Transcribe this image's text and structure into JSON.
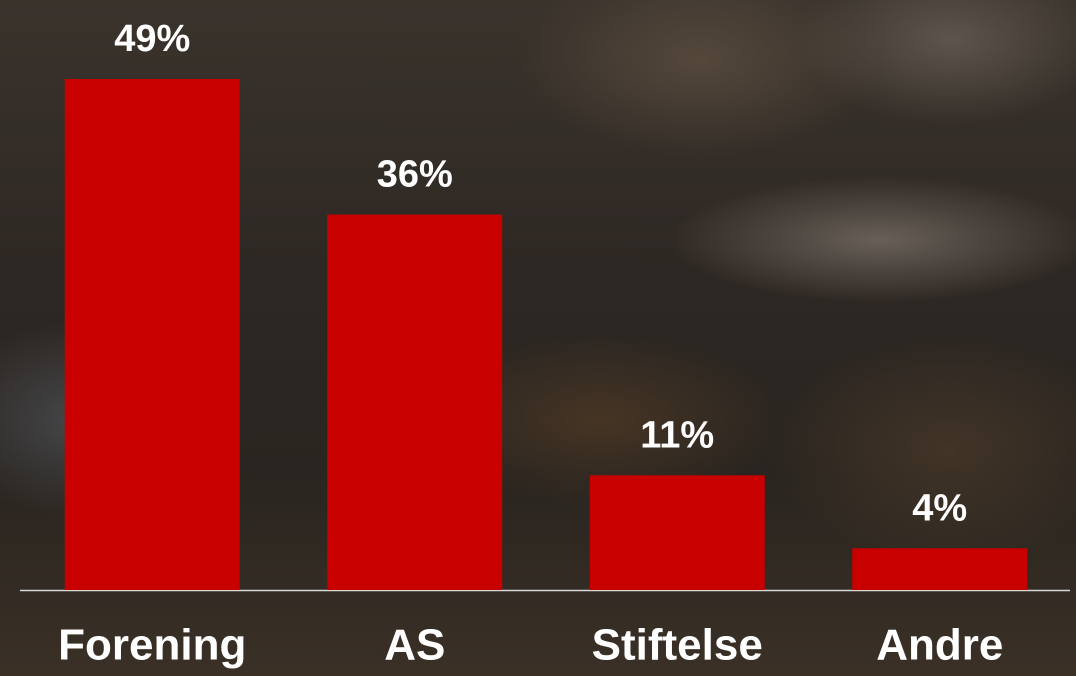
{
  "chart_data": {
    "type": "bar",
    "categories": [
      "Forening",
      "AS",
      "Stiftelse",
      "Andre"
    ],
    "values": [
      49,
      36,
      11,
      4
    ],
    "value_labels": [
      "49%",
      "36%",
      "11%",
      "4%"
    ],
    "color": "#c80000"
  }
}
